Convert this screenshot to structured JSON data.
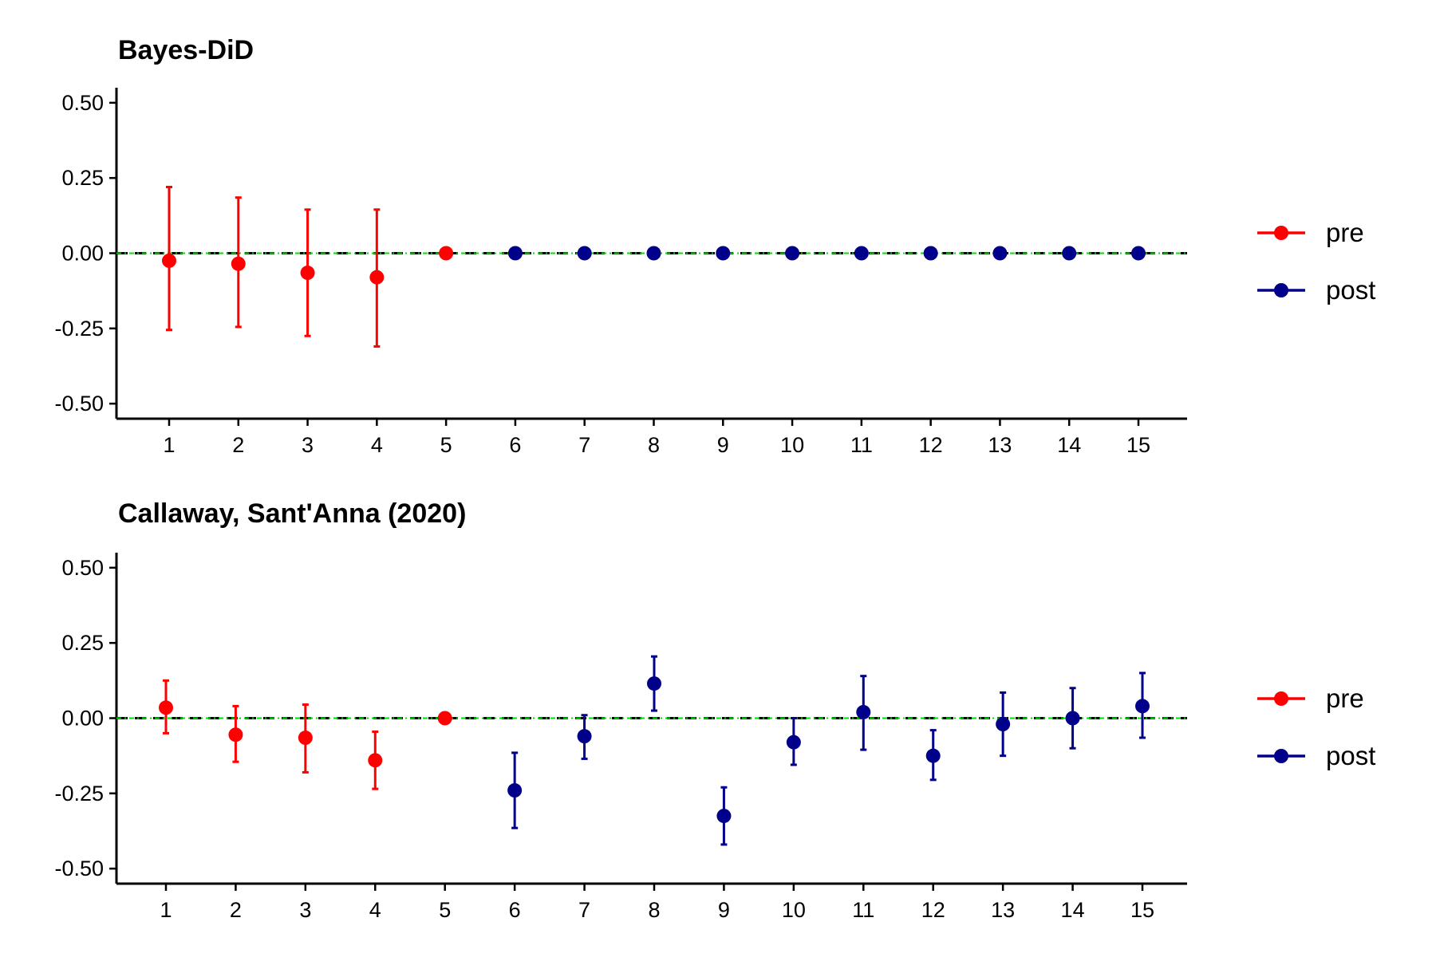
{
  "colors": {
    "pre": "#FF0000",
    "post": "#00008B",
    "zero_line": "#000000",
    "reference_line": "#00E000"
  },
  "chart_data": [
    {
      "type": "scatter",
      "title": "Bayes-DiD",
      "xlabel": "",
      "ylabel": "",
      "x": [
        1,
        2,
        3,
        4,
        5,
        6,
        7,
        8,
        9,
        10,
        11,
        12,
        13,
        14,
        15
      ],
      "x_tick_labels": [
        "1",
        "2",
        "3",
        "4",
        "5",
        "6",
        "7",
        "8",
        "9",
        "10",
        "11",
        "12",
        "13",
        "14",
        "15"
      ],
      "ylim": [
        -0.55,
        0.55
      ],
      "y_ticks": [
        0.5,
        0.25,
        0.0,
        -0.25,
        -0.5
      ],
      "y_tick_labels": [
        "0.50",
        "0.25",
        "0.00",
        "-0.25",
        "-0.50"
      ],
      "grid": false,
      "legend_position": "right",
      "reference_lines": [
        {
          "y": 0,
          "style": "dashed",
          "color": "#000000"
        },
        {
          "y": 0,
          "style": "dotdash",
          "color": "#00E000"
        }
      ],
      "series": [
        {
          "name": "pre",
          "color": "#FF0000",
          "points": [
            {
              "x": 1,
              "y": -0.025,
              "lower": -0.255,
              "upper": 0.22
            },
            {
              "x": 2,
              "y": -0.035,
              "lower": -0.245,
              "upper": 0.185
            },
            {
              "x": 3,
              "y": -0.065,
              "lower": -0.275,
              "upper": 0.145
            },
            {
              "x": 4,
              "y": -0.08,
              "lower": -0.31,
              "upper": 0.145
            },
            {
              "x": 5,
              "y": 0.0,
              "lower": 0.0,
              "upper": 0.0
            }
          ]
        },
        {
          "name": "post",
          "color": "#00008B",
          "points": [
            {
              "x": 6,
              "y": 0.0,
              "lower": 0.0,
              "upper": 0.0
            },
            {
              "x": 7,
              "y": 0.0,
              "lower": 0.0,
              "upper": 0.0
            },
            {
              "x": 8,
              "y": 0.0,
              "lower": 0.0,
              "upper": 0.0
            },
            {
              "x": 9,
              "y": 0.0,
              "lower": 0.0,
              "upper": 0.0
            },
            {
              "x": 10,
              "y": 0.0,
              "lower": 0.0,
              "upper": 0.0
            },
            {
              "x": 11,
              "y": 0.0,
              "lower": 0.0,
              "upper": 0.0
            },
            {
              "x": 12,
              "y": 0.0,
              "lower": 0.0,
              "upper": 0.0
            },
            {
              "x": 13,
              "y": 0.0,
              "lower": 0.0,
              "upper": 0.0
            },
            {
              "x": 14,
              "y": 0.0,
              "lower": 0.0,
              "upper": 0.0
            },
            {
              "x": 15,
              "y": 0.0,
              "lower": 0.0,
              "upper": 0.0
            }
          ]
        }
      ]
    },
    {
      "type": "scatter",
      "title": "Callaway, Sant'Anna (2020)",
      "xlabel": "",
      "ylabel": "",
      "x": [
        1,
        2,
        3,
        4,
        5,
        6,
        7,
        8,
        9,
        10,
        11,
        12,
        13,
        14,
        15
      ],
      "x_tick_labels": [
        "1",
        "2",
        "3",
        "4",
        "5",
        "6",
        "7",
        "8",
        "9",
        "10",
        "11",
        "12",
        "13",
        "14",
        "15"
      ],
      "ylim": [
        -0.55,
        0.55
      ],
      "y_ticks": [
        0.5,
        0.25,
        0.0,
        -0.25,
        -0.5
      ],
      "y_tick_labels": [
        "0.50",
        "0.25",
        "0.00",
        "-0.25",
        "-0.50"
      ],
      "grid": false,
      "legend_position": "right",
      "reference_lines": [
        {
          "y": 0,
          "style": "dashed",
          "color": "#000000"
        },
        {
          "y": 0,
          "style": "dotdash",
          "color": "#00E000"
        }
      ],
      "series": [
        {
          "name": "pre",
          "color": "#FF0000",
          "points": [
            {
              "x": 1,
              "y": 0.035,
              "lower": -0.05,
              "upper": 0.125
            },
            {
              "x": 2,
              "y": -0.055,
              "lower": -0.145,
              "upper": 0.04
            },
            {
              "x": 3,
              "y": -0.065,
              "lower": -0.18,
              "upper": 0.045
            },
            {
              "x": 4,
              "y": -0.14,
              "lower": -0.235,
              "upper": -0.045
            },
            {
              "x": 5,
              "y": 0.0,
              "lower": 0.0,
              "upper": 0.0
            }
          ]
        },
        {
          "name": "post",
          "color": "#00008B",
          "points": [
            {
              "x": 6,
              "y": -0.24,
              "lower": -0.365,
              "upper": -0.115
            },
            {
              "x": 7,
              "y": -0.06,
              "lower": -0.135,
              "upper": 0.01
            },
            {
              "x": 8,
              "y": 0.115,
              "lower": 0.025,
              "upper": 0.205
            },
            {
              "x": 9,
              "y": -0.325,
              "lower": -0.42,
              "upper": -0.23
            },
            {
              "x": 10,
              "y": -0.08,
              "lower": -0.155,
              "upper": 0.0
            },
            {
              "x": 11,
              "y": 0.02,
              "lower": -0.105,
              "upper": 0.14
            },
            {
              "x": 12,
              "y": -0.125,
              "lower": -0.205,
              "upper": -0.04
            },
            {
              "x": 13,
              "y": -0.02,
              "lower": -0.125,
              "upper": 0.085
            },
            {
              "x": 14,
              "y": 0.0,
              "lower": -0.1,
              "upper": 0.1
            },
            {
              "x": 15,
              "y": 0.04,
              "lower": -0.065,
              "upper": 0.15
            }
          ]
        }
      ]
    }
  ]
}
